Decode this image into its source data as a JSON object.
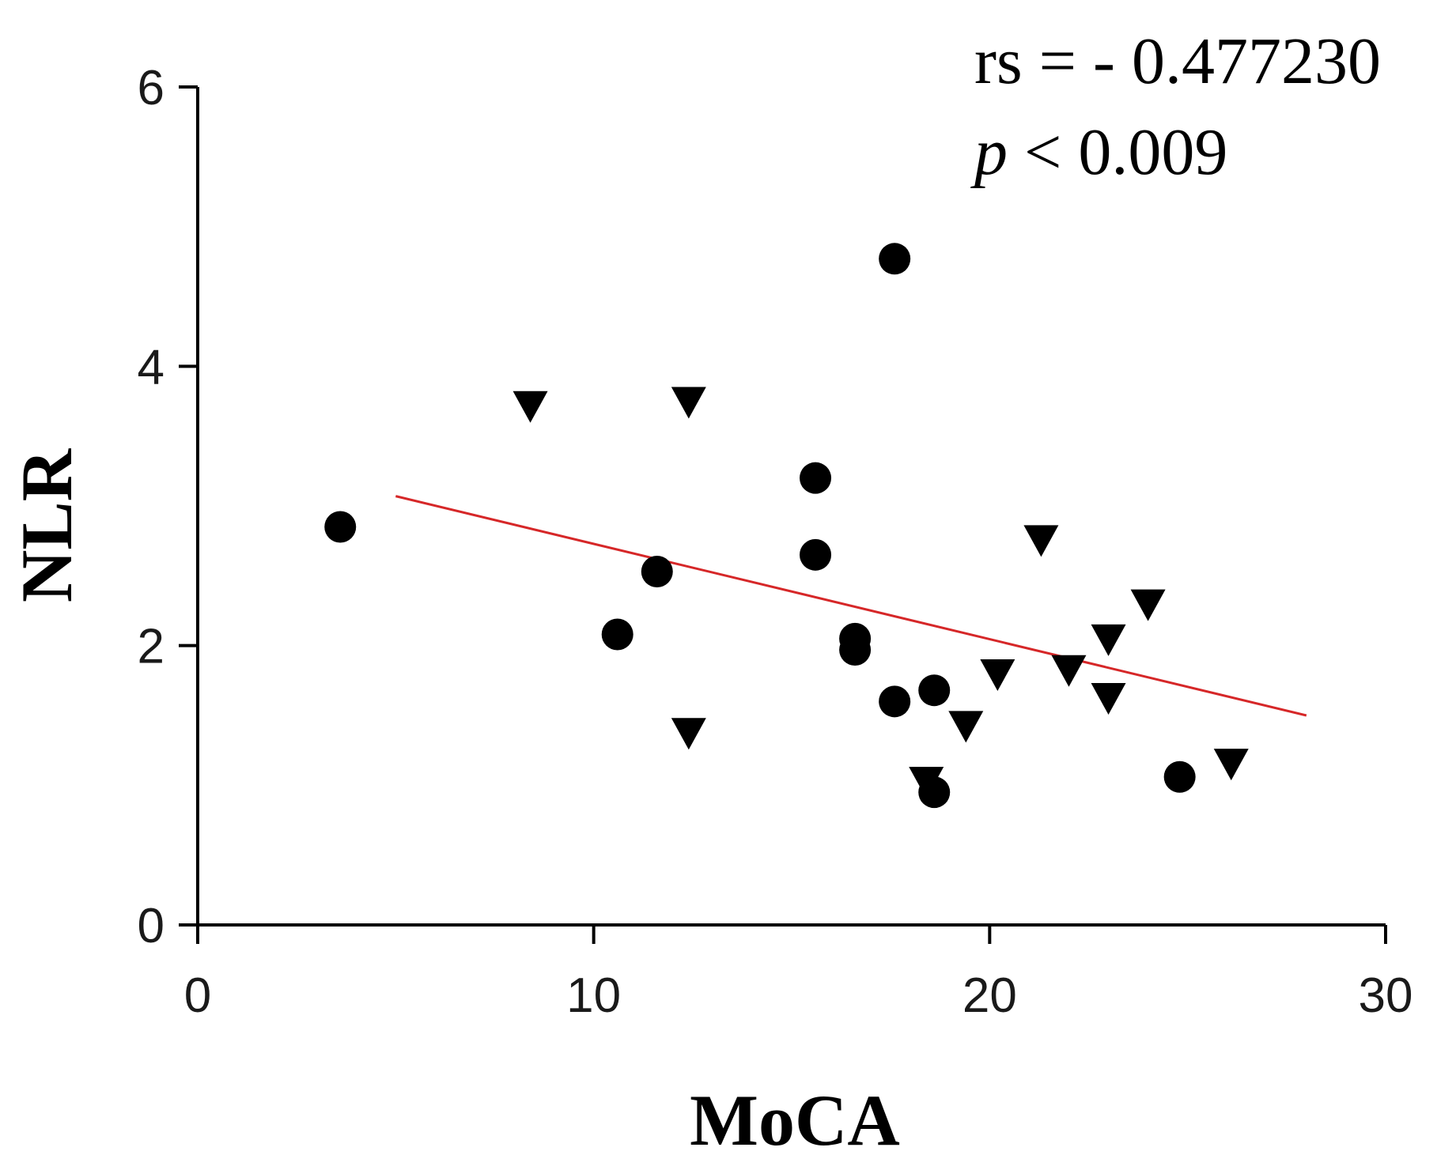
{
  "chart_data": {
    "type": "scatter",
    "xlabel": "MoCA",
    "ylabel": "NLR",
    "xlim": [
      0,
      30
    ],
    "ylim": [
      0,
      6
    ],
    "x_ticks": [
      0,
      10,
      20,
      30
    ],
    "y_ticks": [
      0,
      2,
      4,
      6
    ],
    "x_tick_labels": [
      "0",
      "10",
      "20",
      "30"
    ],
    "y_tick_labels": [
      "0",
      "2",
      "4",
      "6"
    ],
    "annotations": {
      "rs_text": "rs = - 0.477230",
      "p_symbol": "p",
      "p_rest": " < 0.009"
    },
    "series": [
      {
        "name": "circles",
        "marker": "circle",
        "color": "#000000",
        "points": [
          {
            "x": 3.6,
            "y": 2.85
          },
          {
            "x": 10.6,
            "y": 2.08
          },
          {
            "x": 11.6,
            "y": 2.53
          },
          {
            "x": 15.6,
            "y": 3.2
          },
          {
            "x": 15.6,
            "y": 2.65
          },
          {
            "x": 16.6,
            "y": 2.05
          },
          {
            "x": 16.6,
            "y": 1.97
          },
          {
            "x": 17.6,
            "y": 4.77
          },
          {
            "x": 17.6,
            "y": 1.6
          },
          {
            "x": 18.6,
            "y": 1.68
          },
          {
            "x": 18.6,
            "y": 0.95
          },
          {
            "x": 24.8,
            "y": 1.06
          }
        ]
      },
      {
        "name": "triangles",
        "marker": "triangle-down",
        "color": "#000000",
        "points": [
          {
            "x": 8.4,
            "y": 3.72
          },
          {
            "x": 12.4,
            "y": 3.75
          },
          {
            "x": 12.4,
            "y": 1.38
          },
          {
            "x": 18.4,
            "y": 1.03
          },
          {
            "x": 19.4,
            "y": 1.43
          },
          {
            "x": 20.2,
            "y": 1.8
          },
          {
            "x": 21.3,
            "y": 2.76
          },
          {
            "x": 22.0,
            "y": 1.83
          },
          {
            "x": 23.0,
            "y": 2.05
          },
          {
            "x": 23.0,
            "y": 1.63
          },
          {
            "x": 24.0,
            "y": 2.3
          },
          {
            "x": 26.1,
            "y": 1.16
          }
        ]
      }
    ],
    "trend_line": {
      "color": "#d62728",
      "x": [
        5,
        28
      ],
      "y": [
        3.07,
        1.5
      ]
    }
  }
}
